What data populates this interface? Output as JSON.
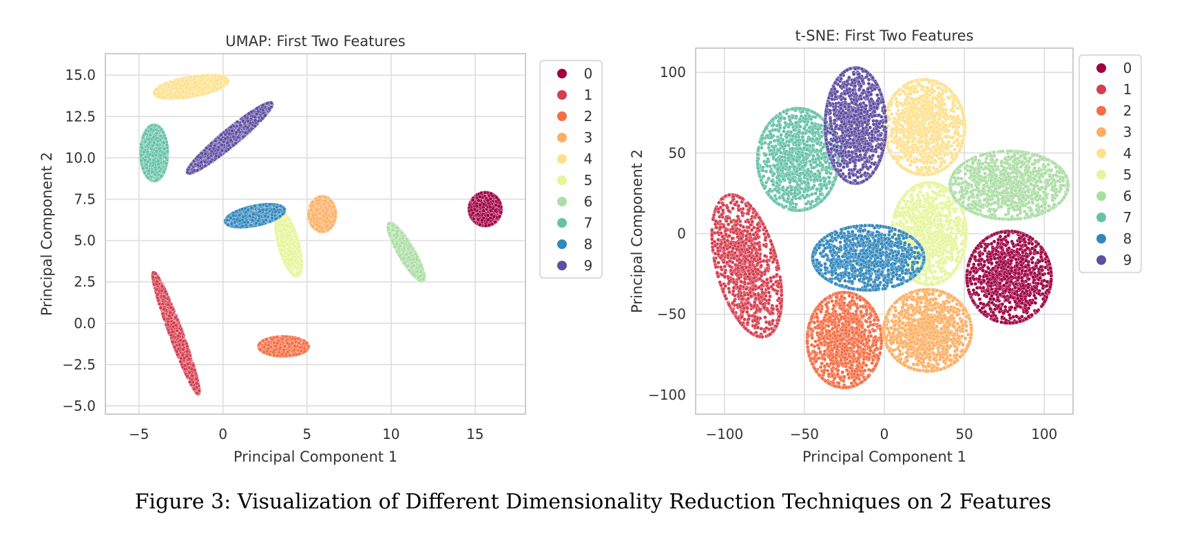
{
  "caption": "Figure 3: Visualization of Different Dimensionality Reduction Techniques on 2 Features",
  "palette": [
    "#9e0142",
    "#d53e4f",
    "#f46d43",
    "#fdae61",
    "#fee08b",
    "#e6f598",
    "#abdda4",
    "#66c2a5",
    "#3288bd",
    "#5e4fa2"
  ],
  "chart_data": [
    {
      "type": "scatter",
      "title": "UMAP: First Two Features",
      "xlabel": "Principal Component 1",
      "ylabel": "Principal Component 2",
      "xlim": [
        -7,
        18
      ],
      "ylim": [
        -5.5,
        16.3
      ],
      "xticks": [
        -5,
        0,
        5,
        10,
        15
      ],
      "xtick_labels": [
        "−5",
        "0",
        "5",
        "10",
        "15"
      ],
      "yticks": [
        -5.0,
        -2.5,
        0.0,
        2.5,
        5.0,
        7.5,
        10.0,
        12.5,
        15.0
      ],
      "ytick_labels": [
        "−5.0",
        "−2.5",
        "0.0",
        "2.5",
        "5.0",
        "7.5",
        "10.0",
        "12.5",
        "15.0"
      ],
      "grid": true,
      "legend": {
        "placement": "outside-right",
        "labels": [
          "0",
          "1",
          "2",
          "3",
          "4",
          "5",
          "6",
          "7",
          "8",
          "9"
        ]
      },
      "clusters": [
        {
          "label": "0",
          "center": [
            15.6,
            6.9
          ],
          "spread": [
            0.9,
            0.95
          ],
          "angle": 0
        },
        {
          "label": "1",
          "center": [
            -2.8,
            -0.6
          ],
          "spread": [
            0.35,
            3.7
          ],
          "angle": 20
        },
        {
          "label": "2",
          "center": [
            3.6,
            -1.4
          ],
          "spread": [
            1.4,
            0.55
          ],
          "angle": 0
        },
        {
          "label": "3",
          "center": [
            5.9,
            6.6
          ],
          "spread": [
            0.75,
            1.0
          ],
          "angle": 0
        },
        {
          "label": "4",
          "center": [
            -1.9,
            14.3
          ],
          "spread": [
            2.1,
            0.55
          ],
          "angle": 10
        },
        {
          "label": "5",
          "center": [
            3.9,
            4.8
          ],
          "spread": [
            0.55,
            1.9
          ],
          "angle": 15
        },
        {
          "label": "6",
          "center": [
            10.9,
            4.3
          ],
          "spread": [
            0.42,
            1.9
          ],
          "angle": 30
        },
        {
          "label": "7",
          "center": [
            -4.1,
            10.3
          ],
          "spread": [
            0.75,
            1.6
          ],
          "angle": 0
        },
        {
          "label": "8",
          "center": [
            1.9,
            6.5
          ],
          "spread": [
            1.7,
            0.55
          ],
          "angle": 12
        },
        {
          "label": "9",
          "center": [
            0.4,
            11.2
          ],
          "spread": [
            3.1,
            0.45
          ],
          "angle": 40
        }
      ]
    },
    {
      "type": "scatter",
      "title": "t-SNE: First Two Features",
      "xlabel": "Principal Component 1",
      "ylabel": "Principal Component 2",
      "xlim": [
        -118,
        118
      ],
      "ylim": [
        -112,
        115
      ],
      "xticks": [
        -100,
        -50,
        0,
        50,
        100
      ],
      "xtick_labels": [
        "−100",
        "−50",
        "0",
        "50",
        "100"
      ],
      "yticks": [
        -100,
        -50,
        0,
        50,
        100
      ],
      "ytick_labels": [
        "−100",
        "−50",
        "0",
        "50",
        "100"
      ],
      "grid": true,
      "legend": {
        "placement": "outside-right",
        "labels": [
          "0",
          "1",
          "2",
          "3",
          "4",
          "5",
          "6",
          "7",
          "8",
          "9"
        ]
      },
      "clusters": [
        {
          "label": "0",
          "center": [
            78,
            -27
          ],
          "spread": [
            25,
            27
          ],
          "angle": 0
        },
        {
          "label": "1",
          "center": [
            -86,
            -20
          ],
          "spread": [
            18,
            43
          ],
          "angle": 15
        },
        {
          "label": "2",
          "center": [
            -25,
            -66
          ],
          "spread": [
            22,
            28
          ],
          "angle": 0
        },
        {
          "label": "3",
          "center": [
            27,
            -60
          ],
          "spread": [
            26,
            24
          ],
          "angle": 0
        },
        {
          "label": "4",
          "center": [
            25,
            66
          ],
          "spread": [
            24,
            28
          ],
          "angle": 0
        },
        {
          "label": "5",
          "center": [
            28,
            0
          ],
          "spread": [
            22,
            30
          ],
          "angle": 0
        },
        {
          "label": "6",
          "center": [
            78,
            30
          ],
          "spread": [
            35,
            20
          ],
          "angle": 0
        },
        {
          "label": "7",
          "center": [
            -54,
            46
          ],
          "spread": [
            24,
            30
          ],
          "angle": 0
        },
        {
          "label": "8",
          "center": [
            -10,
            -15
          ],
          "spread": [
            33,
            19
          ],
          "angle": 0
        },
        {
          "label": "9",
          "center": [
            -18,
            67
          ],
          "spread": [
            18,
            34
          ],
          "angle": 0
        }
      ]
    }
  ]
}
